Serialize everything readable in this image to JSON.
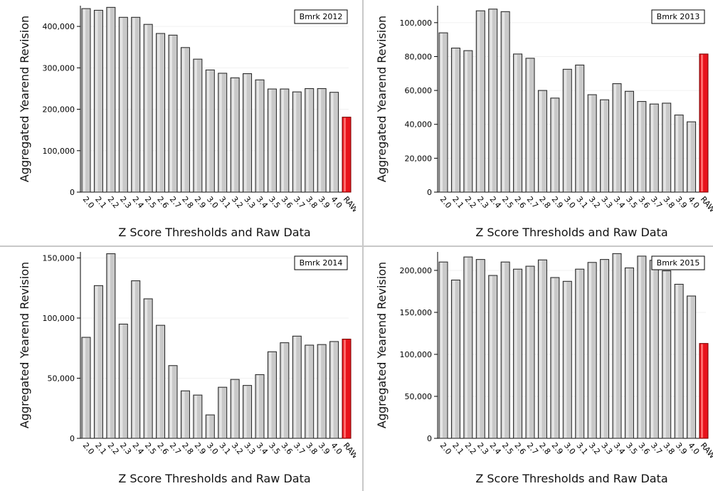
{
  "colors": {
    "bar_fill": "#c9c9c9",
    "bar_stroke": "#222222",
    "raw_fill": "#e8141c",
    "raw_stroke": "#7a0000",
    "axis": "#000000",
    "grid": "#f0f0f0"
  },
  "chart_data": [
    {
      "type": "bar",
      "legend": "Bmrk 2012",
      "legend_position": "top-right",
      "xlabel": "Z Score Thresholds and Raw Data",
      "ylabel": "Aggregated Yearend Revision",
      "ylim": [
        0,
        450000
      ],
      "yticks": [
        0,
        100000,
        200000,
        300000,
        400000
      ],
      "ytick_labels": [
        "0",
        "100,000",
        "200,000",
        "300,000",
        "400,000"
      ],
      "grid": true,
      "categories": [
        "2.0",
        "2.1",
        "2.2",
        "2.3",
        "2.4",
        "2.5",
        "2.6",
        "2.7",
        "2.8",
        "2.9",
        "3.0",
        "3.1",
        "3.2",
        "3.3",
        "3.4",
        "3.5",
        "3.6",
        "3.7",
        "3.8",
        "3.9",
        "4.0",
        "RAW"
      ],
      "values": [
        443000,
        439000,
        446000,
        422000,
        422000,
        405000,
        383000,
        379000,
        349000,
        321000,
        295000,
        287000,
        276000,
        286000,
        271000,
        249000,
        249000,
        242000,
        250000,
        250000,
        241000,
        181000
      ],
      "highlight": "RAW"
    },
    {
      "type": "bar",
      "legend": "Bmrk 2013",
      "legend_position": "top-right",
      "xlabel": "Z Score Thresholds and Raw Data",
      "ylabel": "Aggregated Yearend Revision",
      "ylim": [
        0,
        110000
      ],
      "yticks": [
        0,
        20000,
        40000,
        60000,
        80000,
        100000
      ],
      "ytick_labels": [
        "0",
        "20,000",
        "40,000",
        "60,000",
        "80,000",
        "100,000"
      ],
      "grid": true,
      "categories": [
        "2.0",
        "2.1",
        "2.2",
        "2.3",
        "2.4",
        "2.5",
        "2.6",
        "2.7",
        "2.8",
        "2.9",
        "3.0",
        "3.1",
        "3.2",
        "3.3",
        "3.4",
        "3.5",
        "3.6",
        "3.7",
        "3.8",
        "3.9",
        "4.0",
        "RAW"
      ],
      "values": [
        94000,
        85000,
        83500,
        107000,
        108000,
        106500,
        81500,
        79000,
        60000,
        55500,
        72500,
        75000,
        57500,
        54500,
        64000,
        59500,
        53500,
        52000,
        52500,
        45500,
        41500,
        81500
      ],
      "highlight": "RAW"
    },
    {
      "type": "bar",
      "legend": "Bmrk 2014",
      "legend_position": "top-right",
      "xlabel": "Z Score Thresholds and Raw Data",
      "ylabel": "Aggregated Yearend Revision",
      "ylim": [
        0,
        155000
      ],
      "yticks": [
        0,
        50000,
        100000,
        150000
      ],
      "ytick_labels": [
        "0",
        "50,000",
        "100,000",
        "150,000"
      ],
      "grid": true,
      "categories": [
        "2.0",
        "2.1",
        "2.2",
        "2.3",
        "2.4",
        "2.5",
        "2.6",
        "2.7",
        "2.8",
        "2.9",
        "3.0",
        "3.1",
        "3.2",
        "3.3",
        "3.4",
        "3.5",
        "3.6",
        "3.7",
        "3.8",
        "3.9",
        "4.0",
        "RAW"
      ],
      "values": [
        84000,
        127000,
        153500,
        95000,
        131000,
        116000,
        94000,
        60500,
        39500,
        36000,
        19500,
        42500,
        49000,
        44000,
        53000,
        72000,
        79500,
        85000,
        77500,
        78000,
        80500,
        82500
      ],
      "highlight": "RAW"
    },
    {
      "type": "bar",
      "legend": "Bmrk 2015",
      "legend_position": "top-right",
      "xlabel": "Z Score Thresholds and Raw Data",
      "ylabel": "Aggregated Yearend Revision",
      "ylim": [
        0,
        222000
      ],
      "yticks": [
        0,
        50000,
        100000,
        150000,
        200000
      ],
      "ytick_labels": [
        "0",
        "50,000",
        "100,000",
        "150,000",
        "200,000"
      ],
      "grid": true,
      "categories": [
        "2.0",
        "2.1",
        "2.2",
        "2.3",
        "2.4",
        "2.5",
        "2.6",
        "2.7",
        "2.8",
        "2.9",
        "3.0",
        "3.1",
        "3.2",
        "3.3",
        "3.4",
        "3.5",
        "3.6",
        "3.7",
        "3.8",
        "3.9",
        "4.0",
        "RAW"
      ],
      "values": [
        210000,
        188500,
        216000,
        213000,
        194000,
        210000,
        201500,
        205000,
        212500,
        191500,
        187000,
        201500,
        209500,
        213000,
        220000,
        203000,
        217000,
        212000,
        199500,
        183500,
        169500,
        113000
      ],
      "highlight": "RAW"
    }
  ]
}
